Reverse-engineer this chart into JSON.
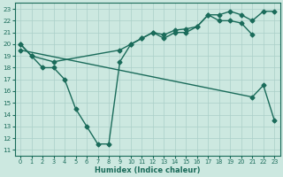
{
  "xlabel": "Humidex (Indice chaleur)",
  "xlim": [
    -0.5,
    23.5
  ],
  "ylim": [
    10.5,
    23.5
  ],
  "yticks": [
    11,
    12,
    13,
    14,
    15,
    16,
    17,
    18,
    19,
    20,
    21,
    22,
    23
  ],
  "xticks": [
    0,
    1,
    2,
    3,
    4,
    5,
    6,
    7,
    8,
    9,
    10,
    11,
    12,
    13,
    14,
    15,
    16,
    17,
    18,
    19,
    20,
    21,
    22,
    23
  ],
  "bg_color": "#cce8e0",
  "grid_color": "#aacfc8",
  "line_color": "#1a6b5a",
  "series": [
    {
      "x": [
        0,
        1,
        2,
        3,
        4,
        5,
        6,
        7,
        8,
        9,
        10,
        11,
        12,
        13,
        14,
        15,
        16,
        17,
        18,
        19,
        20,
        21
      ],
      "y": [
        20,
        19,
        18,
        18,
        17,
        14.5,
        13,
        11.5,
        11.5,
        18.5,
        20,
        20.5,
        21,
        20.5,
        21,
        21,
        21.5,
        22.5,
        22,
        22,
        21.8,
        20.8
      ],
      "marker": "D",
      "markersize": 2.5,
      "linewidth": 1.0
    },
    {
      "x": [
        0,
        1,
        3,
        9,
        10,
        11,
        12,
        13,
        14,
        15,
        16,
        17,
        18,
        19,
        20,
        21,
        22,
        23
      ],
      "y": [
        20,
        19,
        18.5,
        19.5,
        20,
        20.5,
        21,
        20.8,
        21.2,
        21.3,
        21.5,
        22.5,
        22.5,
        22.8,
        22.5,
        22.0,
        22.8,
        22.8
      ],
      "marker": "D",
      "markersize": 2.5,
      "linewidth": 1.0
    },
    {
      "x": [
        0,
        21,
        22,
        23
      ],
      "y": [
        19.5,
        15.5,
        16.5,
        13.5
      ],
      "marker": "D",
      "markersize": 2.5,
      "linewidth": 1.0
    }
  ]
}
